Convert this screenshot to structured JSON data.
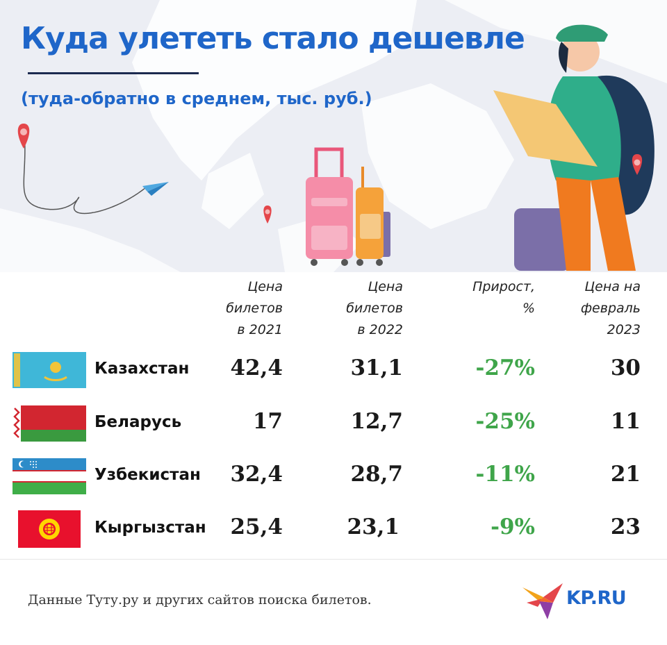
{
  "title": "Куда улететь стало дешевле",
  "subtitle": "(туда-обратно в среднем, тыс. руб.)",
  "colors": {
    "accent": "#1f66c9",
    "growth": "#3fa54a",
    "text": "#1b1b1b"
  },
  "headers": {
    "price_2021": "Цена\nбилетов\nв 2021",
    "price_2022": "Цена\nбилетов\nв 2022",
    "growth": "Прирост,\n%",
    "price_feb_2023": "Цена на\nфевраль\n2023"
  },
  "chart_data": {
    "type": "table",
    "columns": [
      "Цена билетов в 2021",
      "Цена билетов в 2022",
      "Прирост, %",
      "Цена на февраль 2023"
    ],
    "rows": [
      {
        "country": "Казахстан",
        "flag": "kazakhstan-flag",
        "price_2021": "42,4",
        "price_2022": "31,1",
        "growth": "-27%",
        "price_feb_2023": "30"
      },
      {
        "country": "Беларусь",
        "flag": "belarus-flag",
        "price_2021": "17",
        "price_2022": "12,7",
        "growth": "-25%",
        "price_feb_2023": "11"
      },
      {
        "country": "Узбекистан",
        "flag": "uzbekistan-flag",
        "price_2021": "32,4",
        "price_2022": "28,7",
        "growth": "-11%",
        "price_feb_2023": "21"
      },
      {
        "country": "Кыргызстан",
        "flag": "kyrgyzstan-flag",
        "price_2021": "25,4",
        "price_2022": "23,1",
        "growth": "-9%",
        "price_feb_2023": "23"
      }
    ]
  },
  "source": "Данные Туту.ру и других сайтов поиска билетов.",
  "logo": "KP.RU"
}
